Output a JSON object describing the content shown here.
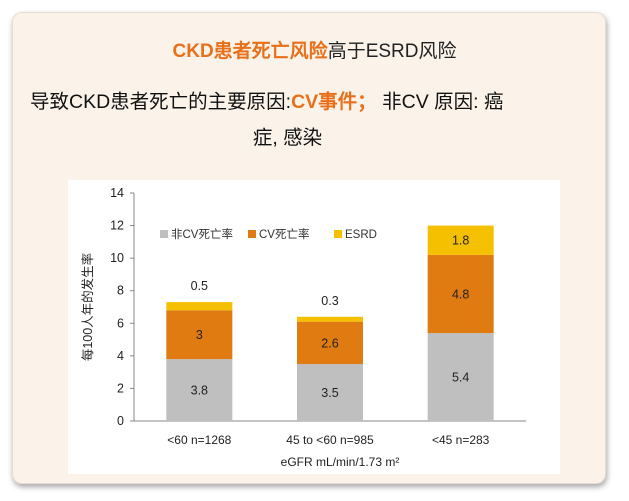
{
  "slide": {
    "title_highlight": "CKD患者死亡风险",
    "title_rest": "高于ESRD风险",
    "subtitle_pre": "导致CKD患者死亡的主要原因:",
    "subtitle_cv": "CV事件；",
    "subtitle_post": " 非CV 原因: 癌",
    "subtitle_line2": "症, 感染"
  },
  "colors": {
    "accent": "#e8701a",
    "non_cv": "#bfbfbf",
    "cv": "#e07b12",
    "esrd": "#f5c000"
  },
  "chart_data": {
    "type": "bar",
    "stacked": true,
    "categories": [
      "<60 n=1268",
      "45 to <60 n=985",
      "<45 n=283"
    ],
    "series": [
      {
        "name": "非CV死亡率",
        "values": [
          3.8,
          3.5,
          5.4
        ],
        "color": "#bfbfbf"
      },
      {
        "name": "CV死亡率",
        "values": [
          3,
          2.6,
          4.8
        ],
        "color": "#e07b12"
      },
      {
        "name": "ESRD",
        "values": [
          0.5,
          0.3,
          1.8
        ],
        "color": "#f5c000"
      }
    ],
    "data_labels": {
      "non_cv": [
        "3.8",
        "3.5",
        "5.4"
      ],
      "cv": [
        "3",
        "2.6",
        "4.8"
      ],
      "esrd": [
        "0.5",
        "0.3",
        "1.8"
      ]
    },
    "xlabel": "eGFR mL/min/1.73 m²",
    "ylabel": "每100人年的发生率",
    "ylim": [
      0,
      14
    ],
    "yticks": [
      0,
      2,
      4,
      6,
      8,
      10,
      12,
      14
    ],
    "grid": false,
    "legend_position": "top-left"
  }
}
